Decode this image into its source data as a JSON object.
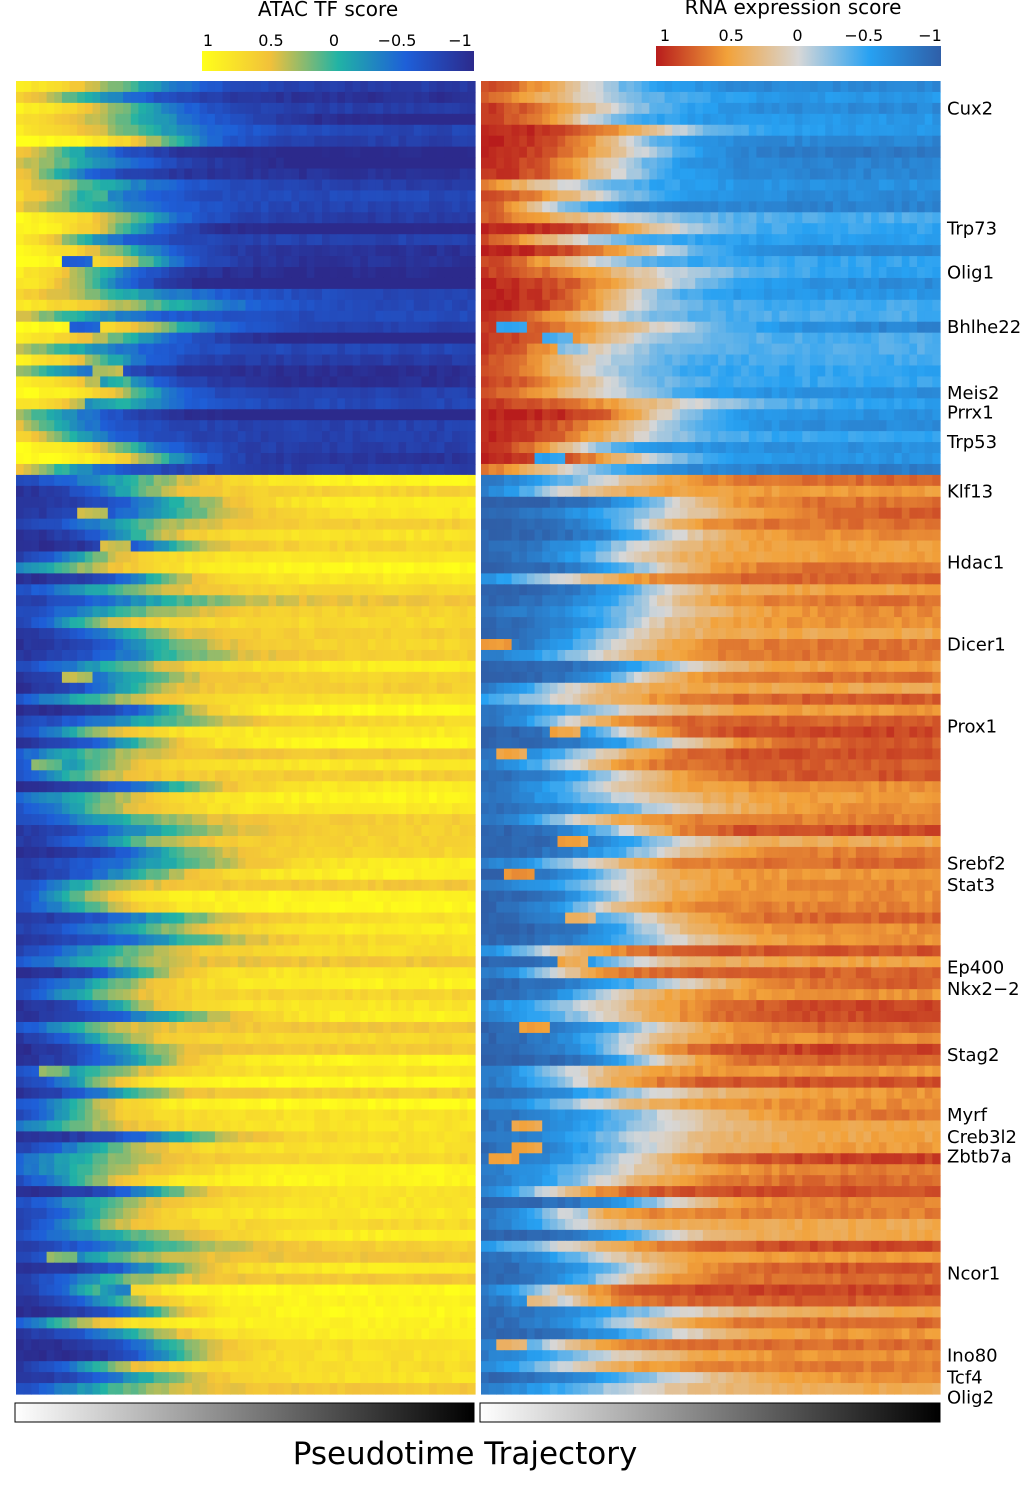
{
  "chart_data": [
    {
      "type": "heatmap",
      "name": "atac",
      "title": "ATAC TF score",
      "colorbar": {
        "ticks": [
          "1",
          "0.5",
          "0",
          "−0.5",
          "−1"
        ],
        "range": [
          1,
          -1
        ],
        "colors": [
          "#ffff1a",
          "#f2c13a",
          "#21b3a5",
          "#1e5fd8",
          "#2c2a8c"
        ]
      },
      "x_axis": "pseudotime",
      "rows": 120,
      "columns": 60,
      "groups": [
        {
          "name": "decreasing",
          "rows": 36,
          "start_value": 1,
          "end_value": -0.9
        },
        {
          "name": "increasing",
          "rows": 84,
          "start_value": -1,
          "end_value": 0.75
        }
      ]
    },
    {
      "type": "heatmap",
      "name": "rna",
      "title": "RNA expression score",
      "colorbar": {
        "ticks": [
          "1",
          "0.5",
          "0",
          "−0.5",
          "−1"
        ],
        "range": [
          1,
          -1
        ],
        "colors": [
          "#b81c1c",
          "#f2a23a",
          "#d7d7d7",
          "#27a1f2",
          "#2f5fa8"
        ]
      },
      "x_axis": "pseudotime",
      "rows": 120,
      "columns": 60,
      "groups": [
        {
          "name": "decreasing",
          "rows": 36,
          "start_value": 1,
          "end_value": -0.6
        },
        {
          "name": "increasing",
          "rows": 84,
          "start_value": -1,
          "end_value": 0.65
        }
      ]
    }
  ],
  "gene_labels": [
    {
      "label": "Cux2",
      "row": 2
    },
    {
      "label": "Trp73",
      "row": 13
    },
    {
      "label": "Olig1",
      "row": 17
    },
    {
      "label": "Bhlhe22",
      "row": 22
    },
    {
      "label": "Meis2",
      "row": 28
    },
    {
      "label": "Prrx1",
      "row": 29.8
    },
    {
      "label": "Trp53",
      "row": 32.5
    },
    {
      "label": "Klf13",
      "row": 37
    },
    {
      "label": "Hdac1",
      "row": 43.5
    },
    {
      "label": "Dicer1",
      "row": 51
    },
    {
      "label": "Prox1",
      "row": 58.5
    },
    {
      "label": "Srebf2",
      "row": 71
    },
    {
      "label": "Stat3",
      "row": 73
    },
    {
      "label": "Ep400",
      "row": 80.5
    },
    {
      "label": "Nkx2−2",
      "row": 82.5
    },
    {
      "label": "Stag2",
      "row": 88.5
    },
    {
      "label": "Myrf",
      "row": 94
    },
    {
      "label": "Creb3l2",
      "row": 96
    },
    {
      "label": "Zbtb7a",
      "row": 97.8
    },
    {
      "label": "Ncor1",
      "row": 108.5
    },
    {
      "label": "Ino80",
      "row": 116
    },
    {
      "label": "Tcf4",
      "row": 118
    },
    {
      "label": "Olig2",
      "row": 119.8
    }
  ],
  "pseudotime": {
    "label": "Pseudotime Trajectory",
    "from_color": "#ffffff",
    "to_color": "#000000"
  }
}
